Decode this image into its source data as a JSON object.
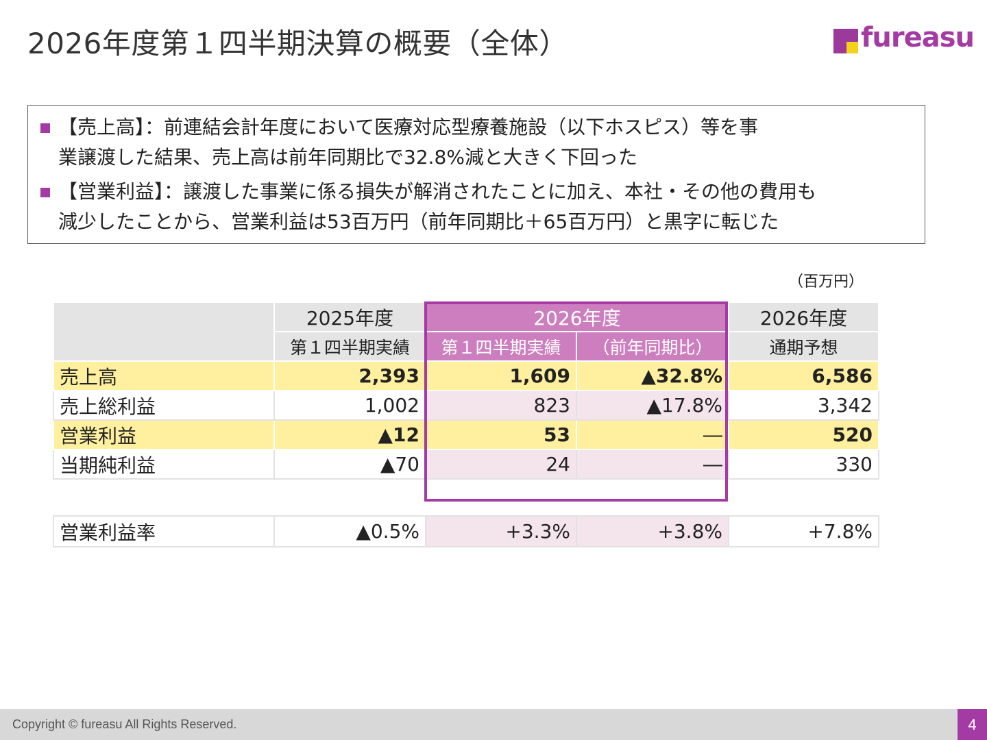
{
  "title": "2026年度第１四半期決算の概要（全体）",
  "logo": {
    "text": "fureasu",
    "colors": {
      "purple": "#a43aa4",
      "yellow": "#f2d21a"
    }
  },
  "summary": {
    "bullets": [
      {
        "line1": "【売上高】：前連結会計年度において医療対応型療養施設（以下ホスピス）等を事",
        "line2": "業譲渡した結果、売上高は前年同期比で32.8%減と大きく下回った"
      },
      {
        "line1": "【営業利益】：譲渡した事業に係る損失が解消されたことに加え、本社・その他の費用も",
        "line2": "減少したことから、営業利益は53百万円（前年同期比＋65百万円）と黒字に転じた"
      }
    ]
  },
  "unit": "（百万円）",
  "table": {
    "header": {
      "col1_year": "2025年度",
      "col2_year": "2026年度",
      "col4_year": "2026年度",
      "col1_sub": "第１四半期実績",
      "col2_sub": "第１四半期実績",
      "col3_sub": "（前年同期比）",
      "col4_sub": "通期予想"
    },
    "rows": [
      {
        "label": "売上高",
        "c1": "2,393",
        "c2": "1,609",
        "c3": "▲32.8%",
        "c4": "6,586"
      },
      {
        "label": "売上総利益",
        "c1": "1,002",
        "c2": "823",
        "c3": "▲17.8%",
        "c4": "3,342"
      },
      {
        "label": "営業利益",
        "c1": "▲12",
        "c2": "53",
        "c3": "―",
        "c4": "520"
      },
      {
        "label": "当期純利益",
        "c1": "▲70",
        "c2": "24",
        "c3": "―",
        "c4": "330"
      }
    ],
    "ratio": {
      "label": "営業利益率",
      "c1": "▲0.5%",
      "c2": "+3.3%",
      "c3": "+3.8%",
      "c4": "+7.8%"
    }
  },
  "footer": {
    "copyright": "Copyright © fureasu All Rights Reserved.",
    "page": "4"
  },
  "colors": {
    "accent": "#a43aa4",
    "header_magenta": "#cc7ebe",
    "highlight_yellow": "#fff0a0",
    "pink_cell": "#f4e4ec",
    "header_gray": "#e4e4e4"
  }
}
